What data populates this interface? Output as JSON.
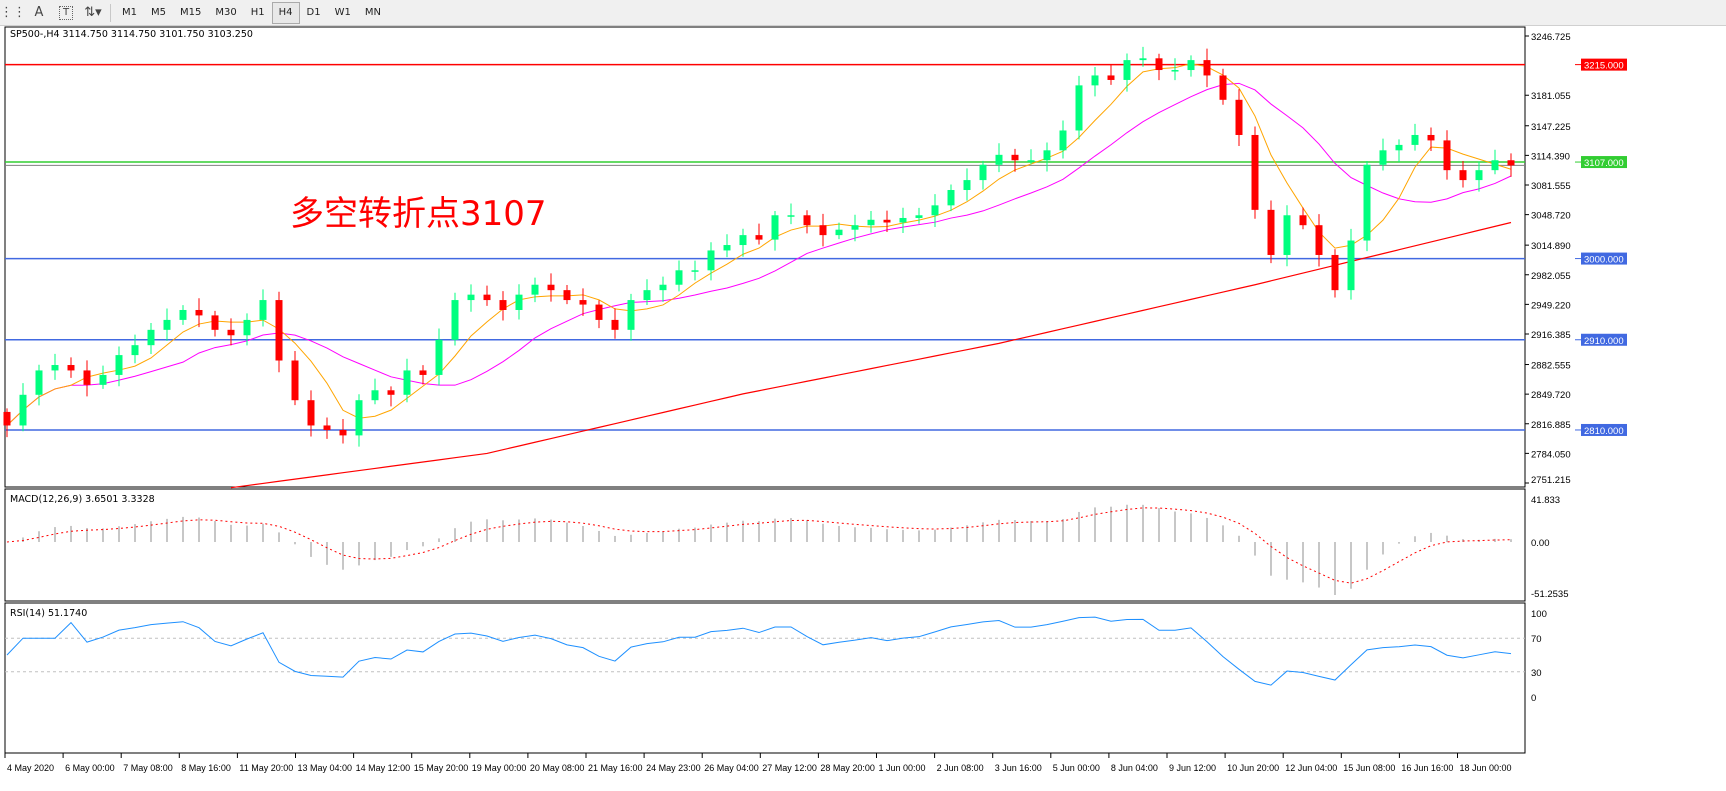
{
  "toolbar": {
    "icons": [
      "period-separator-icon",
      "text-icon",
      "text-label-icon",
      "arrows-icon"
    ],
    "text_icon_glyph": "A",
    "label_icon_glyph": "T",
    "timeframes": [
      "M1",
      "M5",
      "M15",
      "M30",
      "H1",
      "H4",
      "D1",
      "W1",
      "MN"
    ],
    "active_timeframe": "H4"
  },
  "chart_data": {
    "type": "candlestick",
    "symbol_header": "SP500-,H4  3114.750 3114.750 3101.750 3103.250",
    "annotation": "多空转折点3107",
    "ylim": [
      2751.215,
      3246.725
    ],
    "y_ticks": [
      "3246.725",
      "3181.055",
      "3147.225",
      "3114.390",
      "3081.555",
      "3048.720",
      "3014.890",
      "2982.055",
      "2949.220",
      "2916.385",
      "2882.555",
      "2849.720",
      "2816.885",
      "2784.050",
      "2751.215"
    ],
    "x_ticks": [
      "4 May 2020",
      "6 May 00:00",
      "7 May 08:00",
      "8 May 16:00",
      "11 May 20:00",
      "13 May 04:00",
      "14 May 12:00",
      "15 May 20:00",
      "19 May 00:00",
      "20 May 08:00",
      "21 May 16:00",
      "24 May 23:00",
      "26 May 04:00",
      "27 May 12:00",
      "28 May 20:00",
      "1 Jun 00:00",
      "2 Jun 08:00",
      "3 Jun 16:00",
      "5 Jun 00:00",
      "8 Jun 04:00",
      "9 Jun 12:00",
      "10 Jun 20:00",
      "12 Jun 04:00",
      "15 Jun 08:00",
      "16 Jun 16:00",
      "18 Jun 00:00"
    ],
    "closes": [
      2815,
      2849,
      2876,
      2882,
      2876,
      2860,
      2871,
      2893,
      2904,
      2921,
      2932,
      2943,
      2937,
      2921,
      2915,
      2932,
      2954,
      2887,
      2843,
      2815,
      2810,
      2804,
      2843,
      2854,
      2849,
      2876,
      2871,
      2910,
      2954,
      2960,
      2954,
      2943,
      2960,
      2971,
      2965,
      2954,
      2949,
      2932,
      2921,
      2954,
      2965,
      2971,
      2987,
      2987,
      3009,
      3015,
      3026,
      3021,
      3048,
      3048,
      3037,
      3026,
      3032,
      3037,
      3043,
      3040,
      3045,
      3048,
      3059,
      3076,
      3087,
      3104,
      3115,
      3109,
      3109,
      3120,
      3142,
      3192,
      3203,
      3198,
      3220,
      3222,
      3209,
      3209,
      3220,
      3203,
      3176,
      3137,
      3054,
      3004,
      3048,
      3037,
      3004,
      2965,
      3020,
      3104,
      3120,
      3126,
      3137,
      3131,
      3098,
      3087,
      3098,
      3109,
      3103.25
    ],
    "ma_red": {
      "from_bar": 14,
      "step": 16,
      "values": [
        2746,
        2784,
        2850,
        2906,
        2971,
        3040
      ]
    },
    "levels": [
      {
        "label": "3215.000",
        "value": 3215,
        "color": "#ff0000"
      },
      {
        "label": "3107.000",
        "value": 3107,
        "color": "#32cd32"
      },
      {
        "label": "3000.000",
        "value": 3000,
        "color": "#4169e1"
      },
      {
        "label": "2910.000",
        "value": 2910,
        "color": "#4169e1"
      },
      {
        "label": "2810.000",
        "value": 2810,
        "color": "#4169e1"
      }
    ],
    "colors": {
      "bull": "#00ff7f",
      "bear": "#ff0000",
      "ma_fast": "#ffa500",
      "ma_mid": "#ff00ff",
      "ma_slow": "#ff0000"
    },
    "macd": {
      "header": "MACD(12,26,9) 3.6501 3.3328",
      "ticks": [
        "41.833",
        "0.00",
        "-51.2535"
      ],
      "range": [
        -51.2535,
        41.833
      ]
    },
    "rsi": {
      "header": "RSI(14) 51.1740",
      "ticks": [
        "100",
        "70",
        "30",
        "0"
      ],
      "levels": [
        70,
        30
      ],
      "color": "#1e90ff"
    }
  }
}
